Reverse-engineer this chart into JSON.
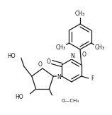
{
  "bg_color": "#ffffff",
  "line_color": "#1a1a1a",
  "line_width": 0.9,
  "font_size": 5.5,
  "fig_width": 1.58,
  "fig_height": 1.63,
  "dpi": 100,
  "xlim": [
    0,
    158
  ],
  "ylim": [
    0,
    163
  ]
}
